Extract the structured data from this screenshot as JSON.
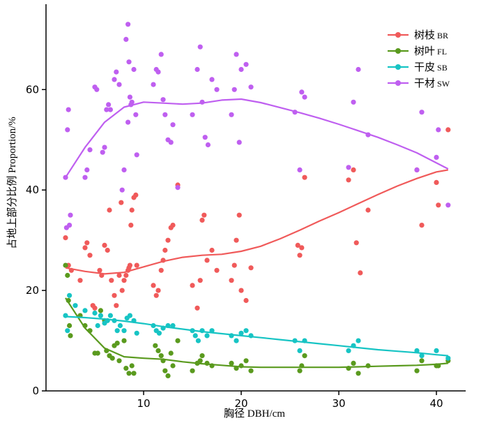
{
  "chart_data": {
    "type": "scatter",
    "title": "",
    "xlabel": "胸径 DBH/cm",
    "ylabel": "占地上部分比例 Proportion/%",
    "xlim": [
      0,
      43
    ],
    "ylim": [
      0,
      77
    ],
    "xticks": [
      10,
      20,
      30,
      40
    ],
    "yticks": [
      0,
      20,
      40,
      60
    ],
    "grid": false,
    "legend_position": "top-right",
    "series": [
      {
        "name": "树枝",
        "code": "BR",
        "color": "#f05a5a",
        "points": [
          [
            2,
            30.5
          ],
          [
            2.3,
            25
          ],
          [
            2.6,
            24
          ],
          [
            3.5,
            22
          ],
          [
            4,
            28.5
          ],
          [
            4.2,
            29.5
          ],
          [
            4.5,
            27
          ],
          [
            4.8,
            17
          ],
          [
            5,
            16.5
          ],
          [
            5.5,
            24
          ],
          [
            5.7,
            23
          ],
          [
            6,
            29
          ],
          [
            6.3,
            28
          ],
          [
            6.5,
            36
          ],
          [
            6.7,
            22
          ],
          [
            7,
            19
          ],
          [
            7.2,
            17
          ],
          [
            7.5,
            23
          ],
          [
            7.8,
            20
          ],
          [
            8,
            22
          ],
          [
            8.2,
            23
          ],
          [
            8.4,
            24
          ],
          [
            8.5,
            24.5
          ],
          [
            8.6,
            25
          ],
          [
            8.7,
            33
          ],
          [
            8.8,
            36
          ],
          [
            9,
            38.5
          ],
          [
            9.2,
            39
          ],
          [
            7.7,
            37.5
          ],
          [
            9.3,
            25
          ],
          [
            11,
            21
          ],
          [
            11.3,
            19
          ],
          [
            11.5,
            20
          ],
          [
            11.8,
            24
          ],
          [
            12,
            26
          ],
          [
            12.2,
            28
          ],
          [
            12.5,
            30
          ],
          [
            12.8,
            32.5
          ],
          [
            13,
            33
          ],
          [
            13.5,
            41
          ],
          [
            15,
            21
          ],
          [
            15.5,
            16.5
          ],
          [
            15.8,
            22
          ],
          [
            16,
            34
          ],
          [
            16.2,
            35
          ],
          [
            16.5,
            26
          ],
          [
            17,
            28
          ],
          [
            17.5,
            24
          ],
          [
            19,
            22
          ],
          [
            19.3,
            25
          ],
          [
            19.5,
            30
          ],
          [
            19.8,
            35
          ],
          [
            20,
            20
          ],
          [
            20.5,
            18
          ],
          [
            21,
            24.5
          ],
          [
            25.8,
            29
          ],
          [
            26,
            27
          ],
          [
            26.2,
            28.5
          ],
          [
            26.5,
            42.5
          ],
          [
            31,
            42
          ],
          [
            31.5,
            44
          ],
          [
            31.8,
            29.5
          ],
          [
            32.2,
            23.5
          ],
          [
            33,
            36
          ],
          [
            38,
            44
          ],
          [
            38.5,
            33
          ],
          [
            40,
            41.5
          ],
          [
            40.2,
            37
          ],
          [
            41.2,
            52
          ]
        ],
        "trend": [
          [
            2,
            24.5
          ],
          [
            4,
            23.8
          ],
          [
            6,
            23.3
          ],
          [
            8,
            23.6
          ],
          [
            10,
            24.7
          ],
          [
            12,
            25.8
          ],
          [
            14,
            26.6
          ],
          [
            16,
            27
          ],
          [
            18,
            27.2
          ],
          [
            20,
            27.8
          ],
          [
            22,
            28.8
          ],
          [
            24,
            30.3
          ],
          [
            26,
            32
          ],
          [
            28,
            33.8
          ],
          [
            30,
            35.5
          ],
          [
            32,
            37.3
          ],
          [
            34,
            39.1
          ],
          [
            36,
            40.8
          ],
          [
            38,
            42.3
          ],
          [
            40,
            43.6
          ],
          [
            41.2,
            44
          ]
        ]
      },
      {
        "name": "树叶",
        "code": "FL",
        "color": "#5a9a1e",
        "points": [
          [
            2,
            25
          ],
          [
            2.2,
            23
          ],
          [
            2.3,
            18
          ],
          [
            2.4,
            13
          ],
          [
            2.5,
            11
          ],
          [
            3.5,
            15
          ],
          [
            4,
            13
          ],
          [
            4.5,
            12
          ],
          [
            5,
            7.5
          ],
          [
            5.3,
            7.5
          ],
          [
            5.6,
            16
          ],
          [
            6,
            14
          ],
          [
            6.2,
            8
          ],
          [
            6.5,
            7
          ],
          [
            6.8,
            6.5
          ],
          [
            7,
            9
          ],
          [
            7.3,
            9.5
          ],
          [
            7.5,
            6
          ],
          [
            8,
            10
          ],
          [
            8.2,
            4.5
          ],
          [
            8.5,
            3.5
          ],
          [
            8.8,
            5
          ],
          [
            9,
            3.5
          ],
          [
            11.2,
            9
          ],
          [
            11.5,
            8
          ],
          [
            11.8,
            7
          ],
          [
            12,
            6
          ],
          [
            12.2,
            4
          ],
          [
            12.5,
            3
          ],
          [
            12.8,
            7.5
          ],
          [
            13,
            5
          ],
          [
            13.5,
            10
          ],
          [
            15,
            4
          ],
          [
            15.5,
            5.5
          ],
          [
            15.8,
            6
          ],
          [
            16,
            7
          ],
          [
            16.5,
            5.5
          ],
          [
            17,
            5
          ],
          [
            19,
            5.5
          ],
          [
            19.5,
            4.5
          ],
          [
            20,
            5
          ],
          [
            20.5,
            6
          ],
          [
            21,
            4
          ],
          [
            26,
            4
          ],
          [
            26.2,
            5
          ],
          [
            26.5,
            7
          ],
          [
            31,
            4.5
          ],
          [
            31.5,
            5.5
          ],
          [
            32,
            3.5
          ],
          [
            33,
            5
          ],
          [
            38,
            4
          ],
          [
            38.5,
            6
          ],
          [
            40,
            5
          ],
          [
            40.2,
            5
          ],
          [
            41.2,
            6
          ]
        ],
        "trend": [
          [
            2,
            18.5
          ],
          [
            4,
            12.5
          ],
          [
            6,
            8.5
          ],
          [
            8,
            6.8
          ],
          [
            10,
            6.5
          ],
          [
            12,
            6.3
          ],
          [
            14,
            5.8
          ],
          [
            16,
            5.4
          ],
          [
            18,
            5.1
          ],
          [
            20,
            4.8
          ],
          [
            22,
            4.7
          ],
          [
            24,
            4.7
          ],
          [
            26,
            4.7
          ],
          [
            28,
            4.7
          ],
          [
            30,
            4.7
          ],
          [
            32,
            4.8
          ],
          [
            34,
            4.9
          ],
          [
            36,
            5
          ],
          [
            38,
            5.1
          ],
          [
            40,
            5.3
          ],
          [
            41.2,
            5.5
          ]
        ]
      },
      {
        "name": "干皮",
        "code": "SB",
        "color": "#17c4c4",
        "points": [
          [
            2,
            15
          ],
          [
            2.2,
            12
          ],
          [
            2.4,
            19
          ],
          [
            3,
            17
          ],
          [
            4,
            16
          ],
          [
            5,
            15.5
          ],
          [
            5.3,
            13
          ],
          [
            5.6,
            15
          ],
          [
            6,
            13.5
          ],
          [
            6.3,
            14
          ],
          [
            6.6,
            15
          ],
          [
            7,
            14
          ],
          [
            7.3,
            12
          ],
          [
            7.6,
            13
          ],
          [
            8,
            12
          ],
          [
            8.3,
            14.5
          ],
          [
            8.6,
            15
          ],
          [
            9,
            14
          ],
          [
            9.3,
            11.5
          ],
          [
            11,
            13
          ],
          [
            11.3,
            12
          ],
          [
            11.6,
            11.5
          ],
          [
            12,
            12.5
          ],
          [
            12.5,
            13
          ],
          [
            13,
            13
          ],
          [
            15,
            12
          ],
          [
            15.3,
            11
          ],
          [
            15.6,
            10
          ],
          [
            16,
            12
          ],
          [
            16.5,
            11
          ],
          [
            17,
            12
          ],
          [
            19,
            11
          ],
          [
            19.5,
            10
          ],
          [
            20,
            11.5
          ],
          [
            20.5,
            12
          ],
          [
            21,
            11
          ],
          [
            25.5,
            10
          ],
          [
            26,
            8
          ],
          [
            26.5,
            10
          ],
          [
            31,
            8
          ],
          [
            31.5,
            9
          ],
          [
            32,
            10
          ],
          [
            38,
            8
          ],
          [
            38.5,
            7
          ],
          [
            40,
            8
          ],
          [
            41.2,
            6.5
          ]
        ],
        "trend": [
          [
            2,
            14.8
          ],
          [
            4,
            14.6
          ],
          [
            6,
            14.3
          ],
          [
            8,
            13.9
          ],
          [
            10,
            13.4
          ],
          [
            12,
            12.8
          ],
          [
            14,
            12.3
          ],
          [
            16,
            11.8
          ],
          [
            18,
            11.4
          ],
          [
            20,
            11
          ],
          [
            22,
            10.6
          ],
          [
            24,
            10.2
          ],
          [
            26,
            9.8
          ],
          [
            28,
            9.4
          ],
          [
            30,
            9
          ],
          [
            32,
            8.6
          ],
          [
            34,
            8.2
          ],
          [
            36,
            7.9
          ],
          [
            38,
            7.6
          ],
          [
            40,
            7.2
          ],
          [
            41.2,
            7
          ]
        ]
      },
      {
        "name": "干材",
        "code": "SW",
        "color": "#bf5ff0",
        "points": [
          [
            2,
            42.5
          ],
          [
            2.1,
            32.5
          ],
          [
            2.2,
            52
          ],
          [
            2.3,
            56
          ],
          [
            2.4,
            33
          ],
          [
            2.5,
            35
          ],
          [
            4,
            42.5
          ],
          [
            4.2,
            44
          ],
          [
            4.5,
            48
          ],
          [
            5,
            60.5
          ],
          [
            5.2,
            60
          ],
          [
            5.8,
            47.5
          ],
          [
            6,
            48.5
          ],
          [
            6.2,
            56
          ],
          [
            6.4,
            57
          ],
          [
            6.6,
            56
          ],
          [
            7,
            62
          ],
          [
            7.2,
            63.5
          ],
          [
            7.5,
            61
          ],
          [
            7.8,
            40
          ],
          [
            8,
            44
          ],
          [
            8.2,
            70
          ],
          [
            8.4,
            73
          ],
          [
            8.5,
            65.5
          ],
          [
            8.6,
            58.5
          ],
          [
            8.7,
            57
          ],
          [
            8.8,
            57.5
          ],
          [
            9,
            64
          ],
          [
            9.2,
            55
          ],
          [
            8.4,
            53.5
          ],
          [
            9.3,
            47
          ],
          [
            11,
            61
          ],
          [
            11.3,
            64
          ],
          [
            11.5,
            63.5
          ],
          [
            11.8,
            67
          ],
          [
            12,
            58
          ],
          [
            12.2,
            55
          ],
          [
            12.5,
            50
          ],
          [
            12.8,
            49.5
          ],
          [
            13,
            53
          ],
          [
            13.5,
            40.5
          ],
          [
            15,
            55
          ],
          [
            15.5,
            64
          ],
          [
            15.8,
            68.5
          ],
          [
            16,
            57.5
          ],
          [
            16.3,
            50.5
          ],
          [
            16.6,
            49
          ],
          [
            17,
            62
          ],
          [
            17.5,
            60
          ],
          [
            19,
            55
          ],
          [
            19.3,
            60
          ],
          [
            19.5,
            67
          ],
          [
            19.8,
            49.5
          ],
          [
            20,
            64
          ],
          [
            20.5,
            65
          ],
          [
            21,
            60.5
          ],
          [
            25.5,
            55.5
          ],
          [
            26,
            44
          ],
          [
            26.2,
            59.5
          ],
          [
            26.5,
            58.5
          ],
          [
            31,
            44.5
          ],
          [
            31.5,
            57.5
          ],
          [
            32,
            64
          ],
          [
            33,
            51
          ],
          [
            38,
            44
          ],
          [
            38.5,
            55.5
          ],
          [
            40,
            46.5
          ],
          [
            40.2,
            52
          ],
          [
            41.2,
            37
          ]
        ],
        "trend": [
          [
            2,
            42.5
          ],
          [
            4,
            48.5
          ],
          [
            6,
            53.5
          ],
          [
            8,
            56.5
          ],
          [
            10,
            57.5
          ],
          [
            12,
            57.3
          ],
          [
            14,
            57.1
          ],
          [
            16,
            57.3
          ],
          [
            18,
            57.9
          ],
          [
            20,
            58.1
          ],
          [
            22,
            57.4
          ],
          [
            24,
            56.4
          ],
          [
            26,
            55.4
          ],
          [
            28,
            54.3
          ],
          [
            30,
            53.1
          ],
          [
            32,
            51.8
          ],
          [
            34,
            50.5
          ],
          [
            36,
            49
          ],
          [
            38,
            47.4
          ],
          [
            40,
            45.4
          ],
          [
            41.2,
            44.2
          ]
        ]
      }
    ]
  }
}
